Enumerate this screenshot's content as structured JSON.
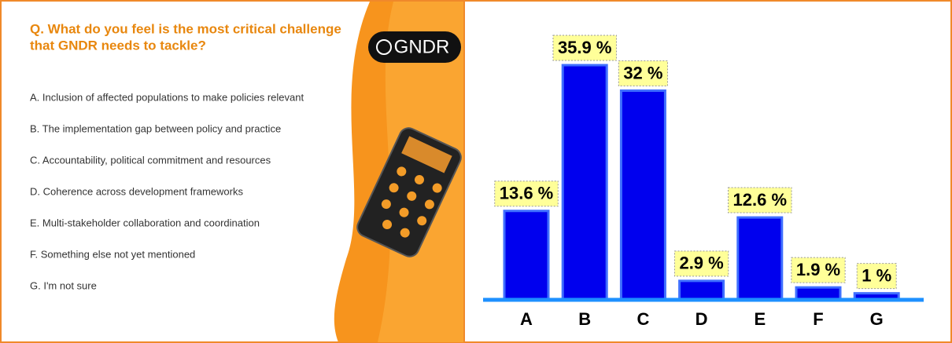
{
  "question": [
    "Q. What do you feel is the most critical challenge",
    "that GNDR needs to tackle?"
  ],
  "logo": "GNDR",
  "options": [
    "A. Inclusion of affected populations to make policies relevant",
    "B. The implementation gap between policy and practice",
    "C. Accountability, political commitment and resources",
    "D. Coherence across development frameworks",
    "E. Multi-stakeholder collaboration and coordination",
    "F. Something else not yet mentioned",
    "G. I'm not sure"
  ],
  "chart_data": {
    "type": "bar",
    "categories": [
      "A",
      "B",
      "C",
      "D",
      "E",
      "F",
      "G"
    ],
    "values": [
      13.6,
      35.9,
      32,
      2.9,
      12.6,
      1.9,
      1
    ],
    "value_labels": [
      "13.6 %",
      "35.9 %",
      "32 %",
      "2.9 %",
      "12.6 %",
      "1.9 %",
      "1 %"
    ],
    "color": "#0000ee"
  }
}
